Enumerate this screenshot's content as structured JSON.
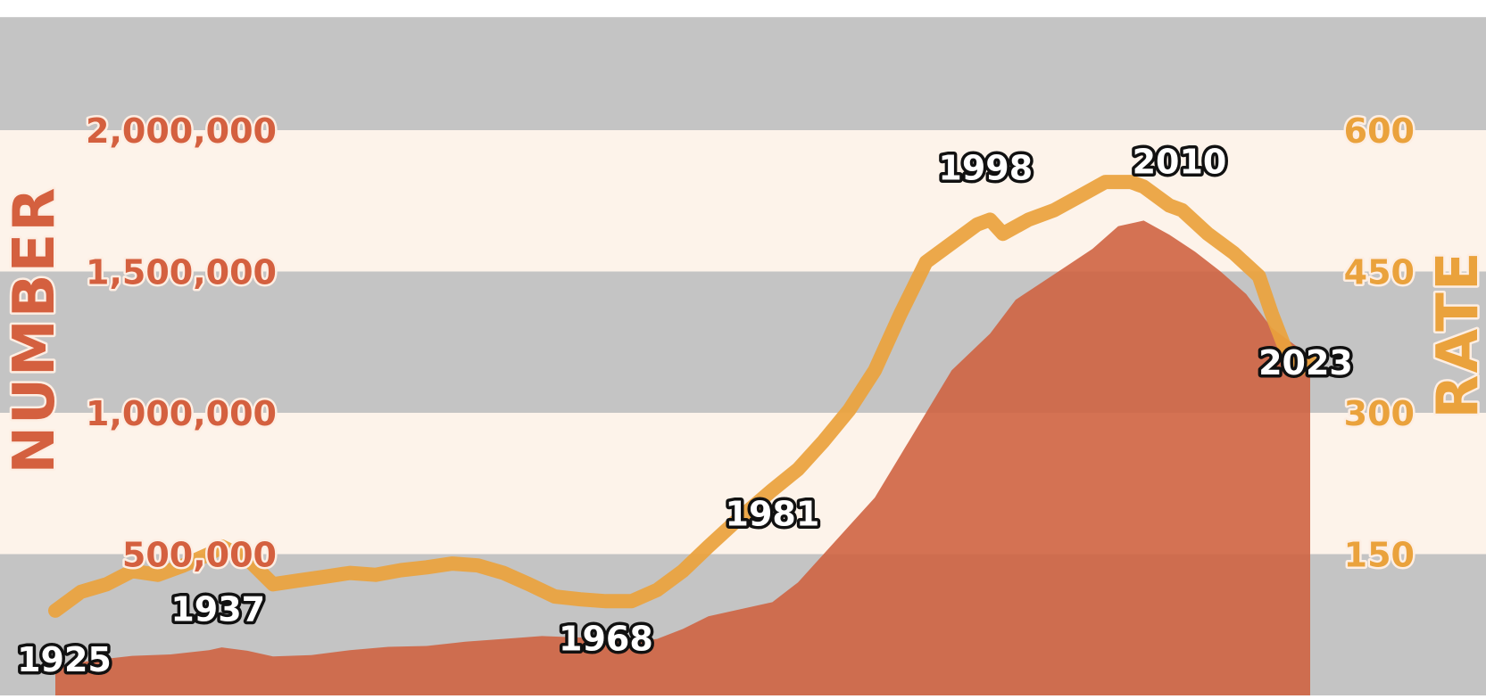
{
  "colors": {
    "band_gray": "#c4c4c4",
    "band_cream": "#fdf3ea",
    "area_fill": "#cf6443",
    "rate_line": "#eaa23c",
    "number_label": "#d4603f",
    "rate_label": "#eaa23c"
  },
  "chart_data": {
    "type": "area",
    "xlim": [
      1925,
      2023
    ],
    "left_axis": {
      "title": "NUMBER",
      "ylim": [
        0,
        2400000
      ],
      "ticks": [
        {
          "value": 2000000,
          "label": "2,000,000"
        },
        {
          "value": 1500000,
          "label": "1,500,000"
        },
        {
          "value": 1000000,
          "label": "1,000,000"
        },
        {
          "value": 500000,
          "label": "500,000"
        }
      ]
    },
    "right_axis": {
      "title": "RATE",
      "ylim": [
        0,
        720
      ],
      "ticks": [
        {
          "value": 600,
          "label": "600"
        },
        {
          "value": 450,
          "label": "450"
        },
        {
          "value": 300,
          "label": "300"
        },
        {
          "value": 150,
          "label": "150"
        }
      ]
    },
    "bands": [
      {
        "from_number": 2000000,
        "to_number": 2400000,
        "color": "gray"
      },
      {
        "from_number": 1500000,
        "to_number": 2000000,
        "color": "cream"
      },
      {
        "from_number": 1000000,
        "to_number": 1500000,
        "color": "gray"
      },
      {
        "from_number": 500000,
        "to_number": 1000000,
        "color": "cream"
      },
      {
        "from_number": 0,
        "to_number": 500000,
        "color": "gray"
      }
    ],
    "series": [
      {
        "axis": "left",
        "style": "area",
        "x": [
          1925,
          1928,
          1931,
          1934,
          1937,
          1938,
          1940,
          1942,
          1945,
          1948,
          1951,
          1954,
          1957,
          1960,
          1963,
          1966,
          1968,
          1970,
          1972,
          1974,
          1976,
          1978,
          1981,
          1983,
          1985,
          1987,
          1989,
          1991,
          1993,
          1995,
          1998,
          2000,
          2002,
          2004,
          2006,
          2008,
          2010,
          2012,
          2014,
          2016,
          2018,
          2020,
          2023
        ],
        "values": [
          100000,
          125000,
          140000,
          145000,
          160000,
          170000,
          158000,
          138000,
          143000,
          160000,
          172000,
          175000,
          190000,
          200000,
          210000,
          205000,
          195000,
          190000,
          200000,
          235000,
          280000,
          300000,
          330000,
          400000,
          500000,
          600000,
          700000,
          850000,
          1000000,
          1150000,
          1280000,
          1400000,
          1460000,
          1520000,
          1580000,
          1660000,
          1680000,
          1630000,
          1570000,
          1500000,
          1420000,
          1300000,
          1200000
        ]
      },
      {
        "axis": "right",
        "style": "line",
        "x": [
          1925,
          1927,
          1929,
          1931,
          1933,
          1935,
          1937,
          1938,
          1940,
          1942,
          1944,
          1946,
          1948,
          1950,
          1952,
          1954,
          1956,
          1958,
          1960,
          1962,
          1964,
          1966,
          1968,
          1970,
          1972,
          1974,
          1976,
          1978,
          1981,
          1983,
          1985,
          1987,
          1989,
          1991,
          1993,
          1995,
          1997,
          1998,
          1999,
          2001,
          2003,
          2005,
          2007,
          2009,
          2010,
          2012,
          2013,
          2015,
          2017,
          2019,
          2020,
          2021,
          2022,
          2023
        ],
        "values": [
          90,
          110,
          118,
          132,
          128,
          138,
          150,
          158,
          145,
          118,
          122,
          126,
          130,
          128,
          133,
          136,
          140,
          138,
          130,
          118,
          105,
          102,
          100,
          100,
          112,
          132,
          158,
          183,
          218,
          240,
          270,
          303,
          345,
          405,
          460,
          480,
          500,
          505,
          490,
          505,
          515,
          530,
          545,
          545,
          540,
          520,
          515,
          490,
          470,
          445,
          405,
          370,
          345,
          355
        ]
      }
    ],
    "annotations": [
      {
        "label": "1925",
        "year": 1925
      },
      {
        "label": "1937",
        "year": 1937
      },
      {
        "label": "1968",
        "year": 1968
      },
      {
        "label": "1981",
        "year": 1981
      },
      {
        "label": "1998",
        "year": 1998
      },
      {
        "label": "2010",
        "year": 2010
      },
      {
        "label": "2023",
        "year": 2023
      }
    ]
  }
}
